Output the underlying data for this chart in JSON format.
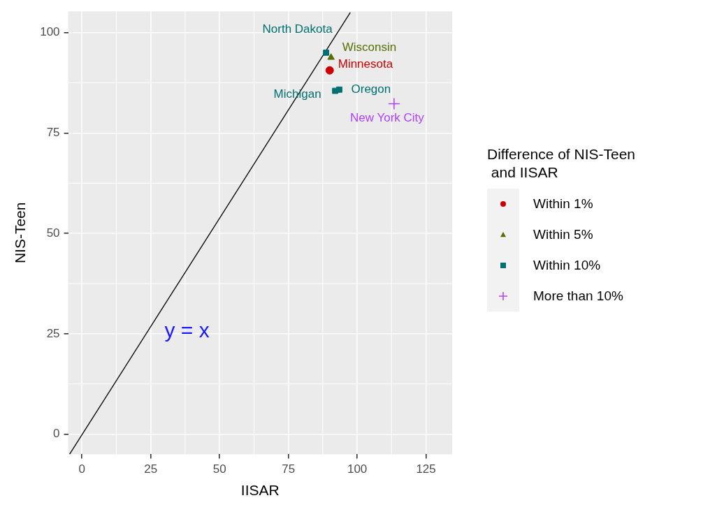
{
  "chart_data": {
    "type": "scatter",
    "xlabel": "IISAR",
    "ylabel": "NIS-Teen",
    "legend_title": "Difference of NIS-Teen\n and IISAR",
    "xlim": [
      -5,
      134.5
    ],
    "xticks": [
      0,
      25,
      50,
      75,
      100,
      125
    ],
    "ylim": [
      -5,
      105.3
    ],
    "yticks": [
      0,
      25,
      50,
      75,
      100
    ],
    "grid": true,
    "legend": "right",
    "series": [
      {
        "name": "Within 1%",
        "color": "#cc0000",
        "marker": "circle",
        "x": [
          90
        ],
        "values": [
          90.6
        ],
        "value_labels": [
          "Minnesota"
        ]
      },
      {
        "name": "Within 5%",
        "color": "#557000",
        "marker": "triangle",
        "x": [
          90.5
        ],
        "values": [
          93.8
        ],
        "value_labels": [
          "Wisconsin"
        ]
      },
      {
        "name": "Within 10%",
        "color": "#007070",
        "marker": "square",
        "x": [
          88.7,
          92,
          93.5
        ],
        "values": [
          95,
          85.5,
          85.8
        ],
        "value_labels": [
          "North Dakota",
          "Michigan",
          "Oregon"
        ]
      },
      {
        "name": "More than 10%",
        "color": "#b040ff",
        "marker": "cross",
        "x": [
          113.4
        ],
        "values": [
          82.3
        ],
        "value_labels": [
          "New York City"
        ]
      },
      {
        "type": "line",
        "color": "#000000",
        "marker": "none",
        "x": [
          -4.5,
          97.5
        ],
        "values": [
          -5,
          105
        ]
      }
    ],
    "annotations": [
      "y = x"
    ]
  }
}
